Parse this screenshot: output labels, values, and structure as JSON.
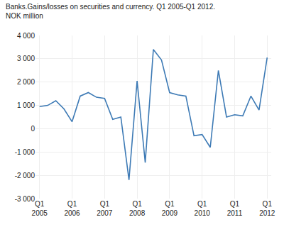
{
  "chart_data": {
    "type": "line",
    "title": "Banks.Gains/losses on securities and currency. Q1 2005-Q1 2012.",
    "subtitle": "NOK million",
    "categories": [
      "Q1\n2005",
      null,
      null,
      null,
      "Q1\n2006",
      null,
      null,
      null,
      "Q1\n2007",
      null,
      null,
      null,
      "Q1\n2008",
      null,
      null,
      null,
      "Q1\n2009",
      null,
      null,
      null,
      "Q1\n2010",
      null,
      null,
      null,
      "Q1\n2011",
      null,
      null,
      null,
      "Q1\n2012"
    ],
    "values": [
      950,
      1000,
      1200,
      850,
      300,
      1400,
      1550,
      1350,
      1300,
      400,
      500,
      -2200,
      2050,
      -1450,
      3400,
      2950,
      1550,
      1450,
      1400,
      -300,
      -250,
      -800,
      2500,
      500,
      600,
      550,
      1400,
      800,
      3050
    ],
    "color": "#3d7ab5",
    "ylim": [
      -3000,
      4000
    ],
    "yticks": [
      {
        "value": -3000,
        "label": "-3 000"
      },
      {
        "value": -2000,
        "label": "-2 000"
      },
      {
        "value": -1000,
        "label": "-1 000"
      },
      0,
      {
        "value": 1000,
        "label": "1 000"
      },
      {
        "value": 2000,
        "label": "2 000"
      },
      {
        "value": 3000,
        "label": "3 000"
      },
      {
        "value": 4000,
        "label": "4 000"
      }
    ],
    "grid": true
  }
}
